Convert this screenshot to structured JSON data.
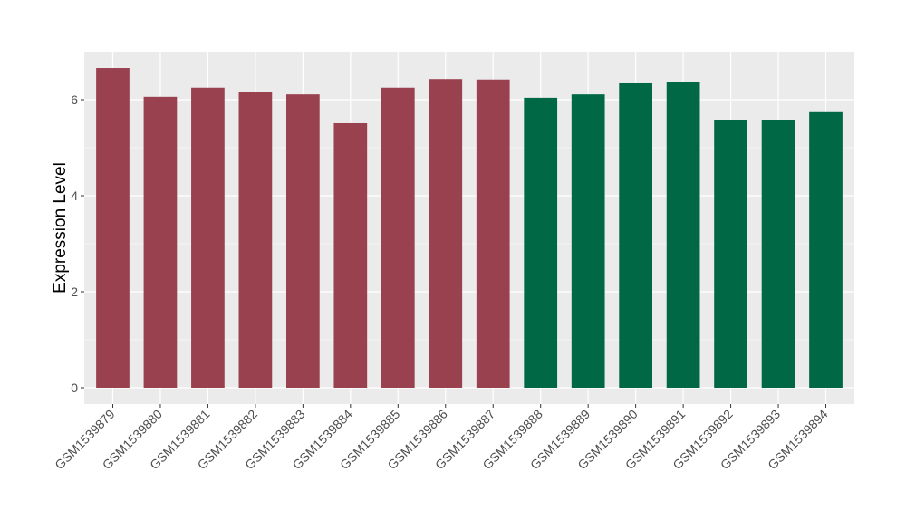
{
  "chart_data": {
    "type": "bar",
    "title": "",
    "xlabel": "",
    "ylabel": "Expression Level",
    "ylim": [
      0,
      7
    ],
    "yticks": [
      0,
      2,
      4,
      6
    ],
    "grid": true,
    "background": "#EBEBEB",
    "categories": [
      "GSM1539879",
      "GSM1539880",
      "GSM1539881",
      "GSM1539882",
      "GSM1539883",
      "GSM1539884",
      "GSM1539885",
      "GSM1539886",
      "GSM1539887",
      "GSM1539888",
      "GSM1539889",
      "GSM1539890",
      "GSM1539891",
      "GSM1539892",
      "GSM1539893",
      "GSM1539894"
    ],
    "values": [
      6.66,
      6.06,
      6.25,
      6.17,
      6.11,
      5.51,
      6.25,
      6.43,
      6.42,
      6.04,
      6.11,
      6.34,
      6.36,
      5.57,
      5.58,
      5.74
    ],
    "bar_colors": [
      "#9A4150",
      "#9A4150",
      "#9A4150",
      "#9A4150",
      "#9A4150",
      "#9A4150",
      "#9A4150",
      "#9A4150",
      "#9A4150",
      "#006845",
      "#006845",
      "#006845",
      "#006845",
      "#006845",
      "#006845",
      "#006845"
    ]
  }
}
